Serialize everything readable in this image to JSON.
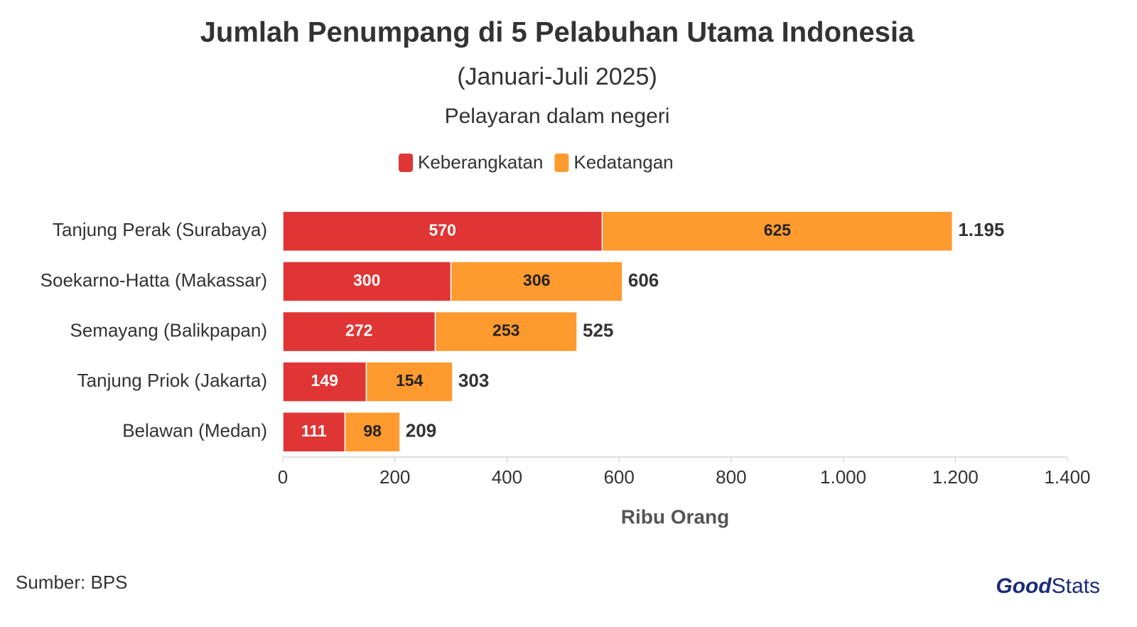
{
  "chart_data": {
    "type": "stacked_bar_horizontal",
    "title": "Jumlah Penumpang di 5 Pelabuhan Utama Indonesia",
    "subtitle": "(Januari-Juli 2025)",
    "subtitle2": "Pelayaran dalam negeri",
    "x_label": "Ribu Orang",
    "categories": [
      "Tanjung Perak (Surabaya)",
      "Soekarno-Hatta (Makassar)",
      "Semayang (Balikpapan)",
      "Tanjung Priok (Jakarta)",
      "Belawan (Medan)"
    ],
    "series": [
      {
        "name": "Keberangkatan",
        "color": "#e03535",
        "label_color": "#ffffff",
        "values": [
          570,
          300,
          272,
          149,
          111
        ]
      },
      {
        "name": "Kedatangan",
        "color": "#ff9a2e",
        "label_color": "#222222",
        "values": [
          625,
          306,
          253,
          154,
          98
        ]
      }
    ],
    "totals": {
      "values": [
        1195,
        606,
        525,
        303,
        209
      ],
      "value_labels": [
        "1.195",
        "606",
        "525",
        "303",
        "209"
      ]
    },
    "xlim": [
      0,
      1400
    ],
    "xticks": [
      0,
      200,
      400,
      600,
      800,
      {
        "value": 1000,
        "label": "1.000"
      },
      {
        "value": 1200,
        "label": "1.200"
      },
      {
        "value": 1400,
        "label": "1.400"
      }
    ],
    "grid": false,
    "legend": "top",
    "source": "Sumber: BPS",
    "logo": [
      "Good",
      "Stats"
    ]
  }
}
